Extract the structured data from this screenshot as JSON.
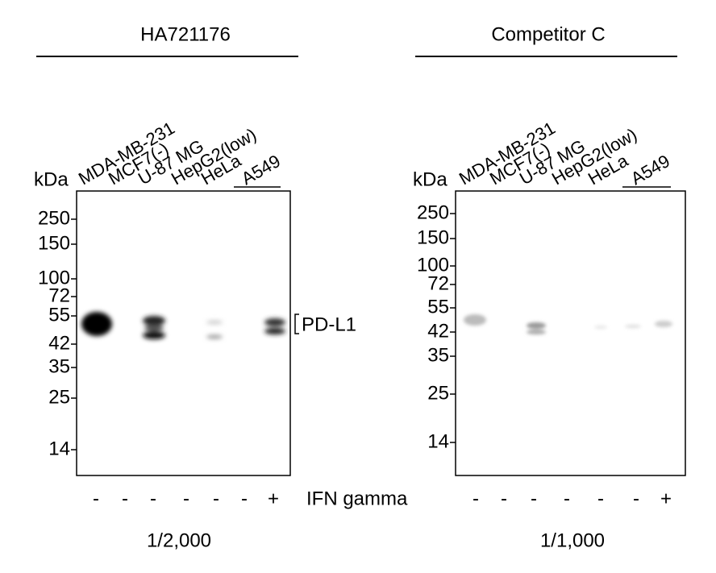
{
  "panels": [
    {
      "title": "HA721176",
      "kda_label": "kDa",
      "lanes": [
        "MDA-MB-231",
        "MCF7(-)",
        "U-87 MG",
        "HepG2(low)",
        "HeLa",
        "A549"
      ],
      "markers": [
        "250",
        "150",
        "100",
        "72",
        "55",
        "42",
        "35",
        "25",
        "14"
      ],
      "ifn": [
        "-",
        "-",
        "-",
        "-",
        "-",
        "-",
        "+"
      ],
      "dilution": "1/2,000"
    },
    {
      "title": "Competitor C",
      "kda_label": "kDa",
      "lanes": [
        "MDA-MB-231",
        "MCF7(-)",
        "U-87 MG",
        "HepG2(low)",
        "HeLa",
        "A549"
      ],
      "markers": [
        "250",
        "150",
        "100",
        "72",
        "55",
        "42",
        "35",
        "25",
        "14"
      ],
      "ifn": [
        "-",
        "-",
        "-",
        "-",
        "-",
        "-",
        "+"
      ],
      "dilution": "1/1,000"
    }
  ],
  "band_label": "PD-L1",
  "treatment_label": "IFN gamma"
}
